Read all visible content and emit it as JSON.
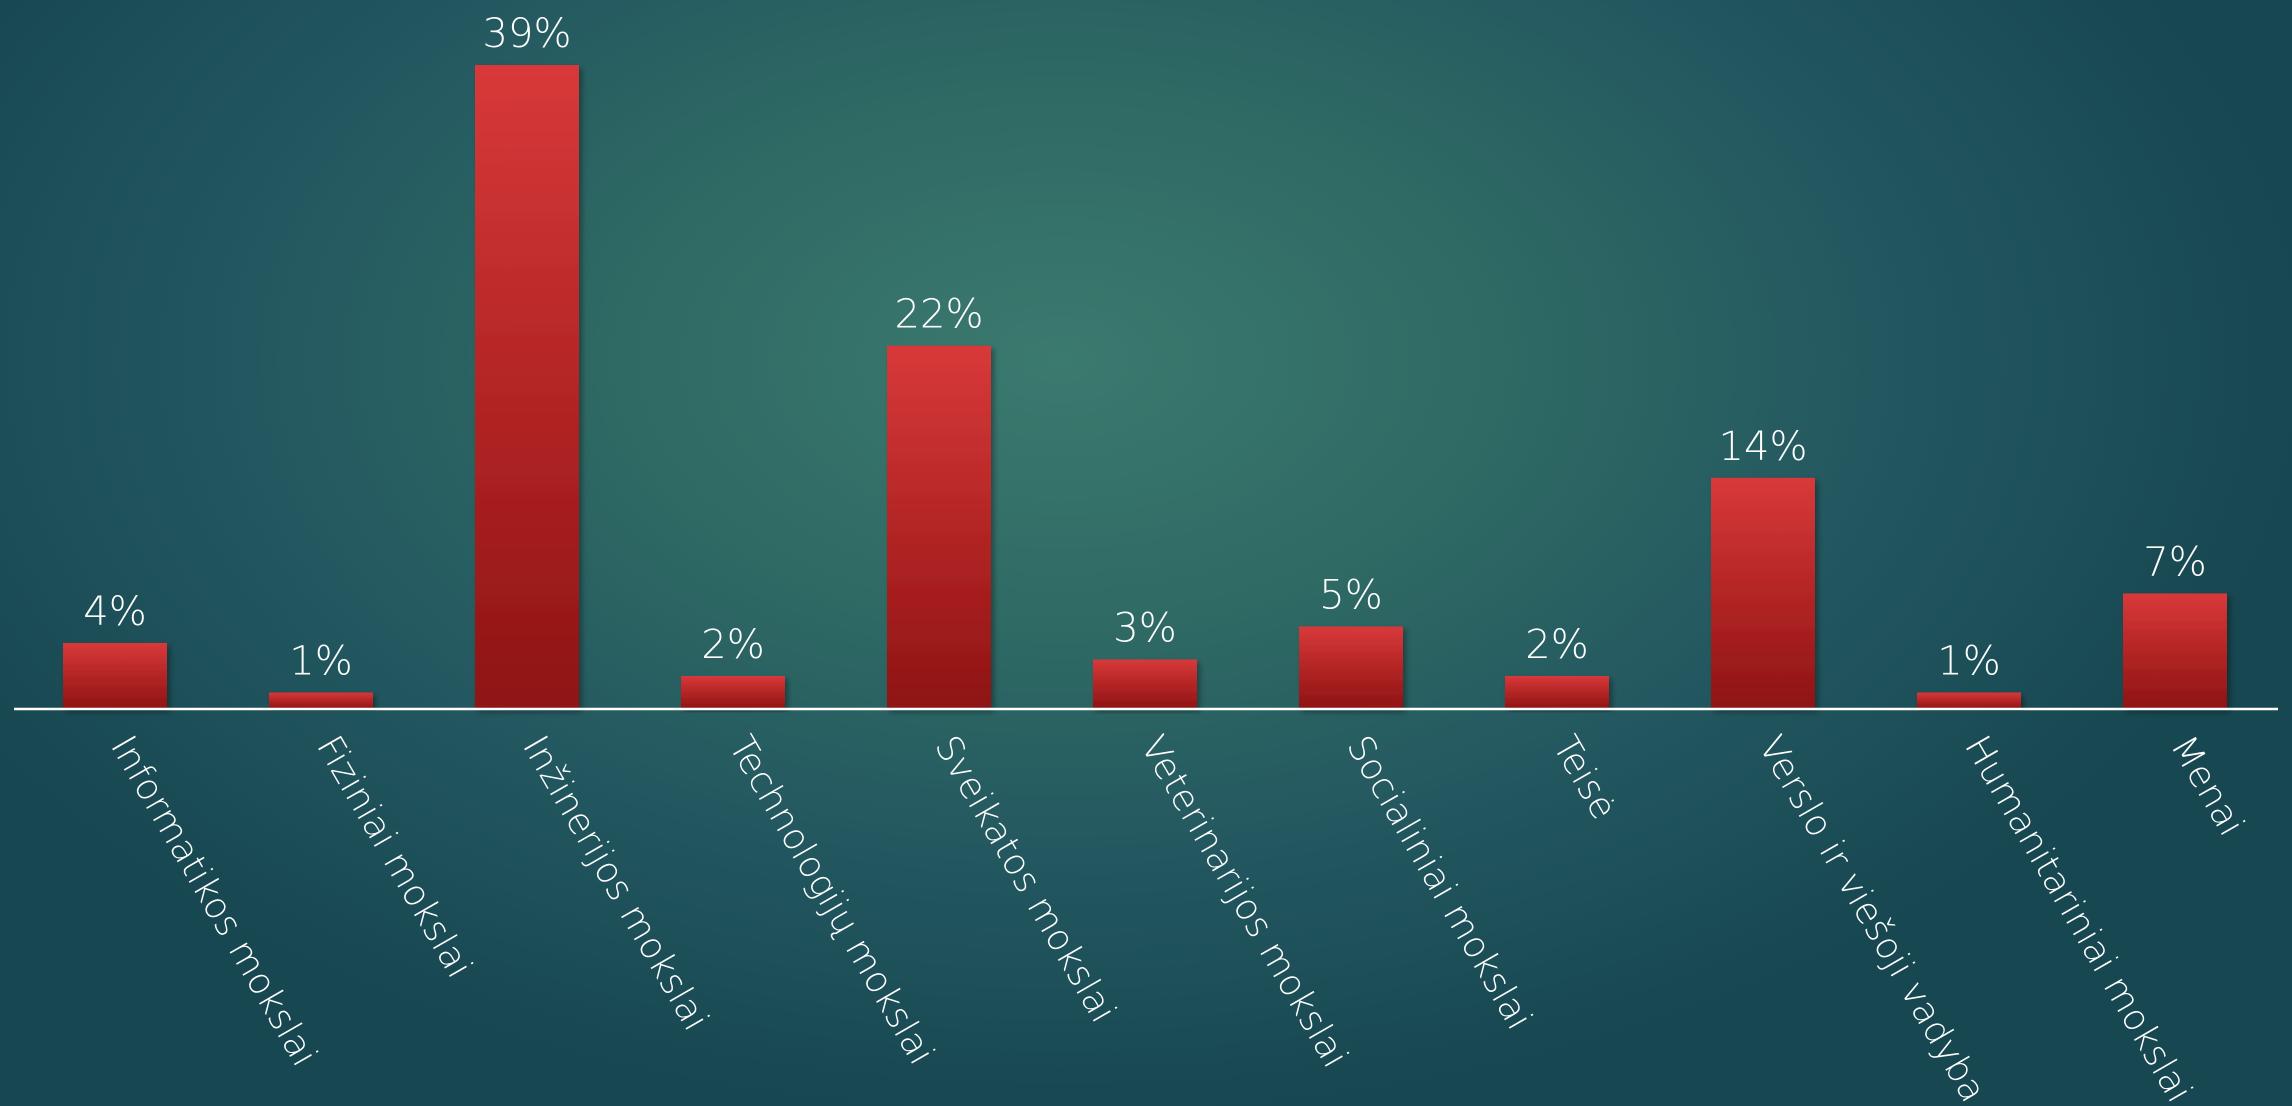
{
  "chart_data": {
    "type": "bar",
    "title": "",
    "xlabel": "",
    "ylabel": "",
    "categories": [
      "Informatikos mokslai",
      "Fiziniai mokslai",
      "Inžinerijos mokslai",
      "Technologijų mokslai",
      "Sveikatos mokslai",
      "Veterinarijos mokslai",
      "Socialiniai mokslai",
      "Teisė",
      "Verslo ir viešoji vadyba",
      "Humanitariniai mokslai",
      "Menai"
    ],
    "values": [
      4,
      1,
      39,
      2,
      22,
      3,
      5,
      2,
      14,
      1,
      7
    ],
    "value_labels": [
      "4%",
      "1%",
      "39%",
      "2%",
      "22%",
      "3%",
      "5%",
      "2%",
      "14%",
      "1%",
      "7%"
    ],
    "unit": "%",
    "ylim": [
      0,
      40
    ],
    "grid": false,
    "legend": "none",
    "bar_color_top": "#d8393a",
    "bar_color_bottom": "#8e1414",
    "axis_color": "#ffffff",
    "text_color": "#ffffff"
  }
}
